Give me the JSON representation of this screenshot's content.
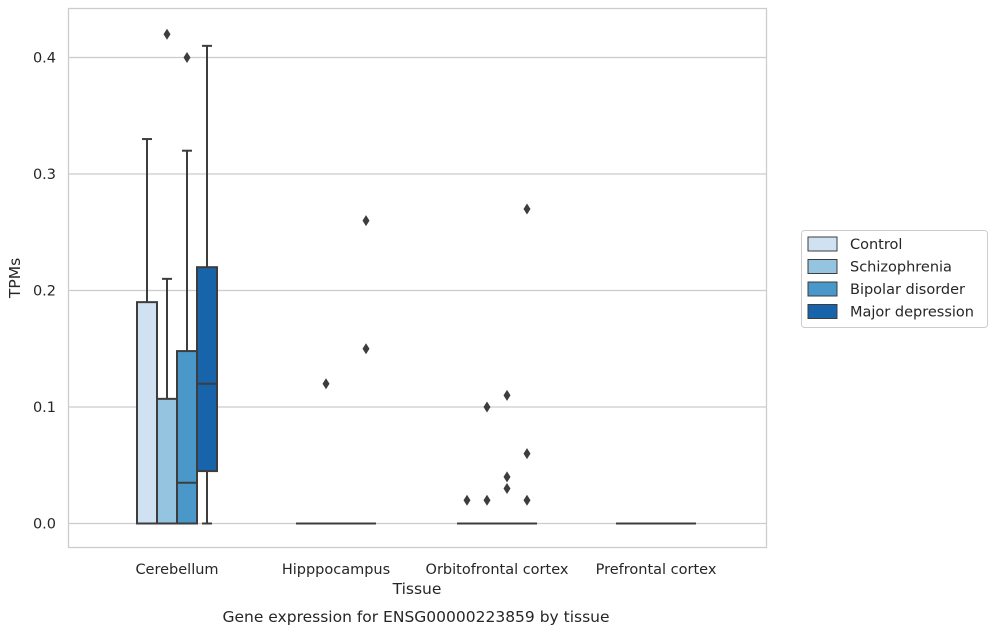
{
  "caption": "Gene expression for ENSG00000223859 by tissue",
  "chart_data": {
    "type": "box",
    "title": "",
    "xlabel": "Tissue",
    "ylabel": "TPMs",
    "ylim": [
      -0.02,
      0.442
    ],
    "yticks": [
      "0.0",
      "0.1",
      "0.2",
      "0.3",
      "0.4"
    ],
    "grid": "horizontal",
    "legend_position": "right",
    "categories": [
      "Cerebellum",
      "Hipppocampus",
      "Orbitofrontal cortex",
      "Prefrontal cortex"
    ],
    "series": [
      {
        "name": "Control",
        "color": "#d0e1f2",
        "boxes": [
          {
            "min": 0,
            "q1": 0,
            "median": 0,
            "q3": 0.19,
            "max": 0.33,
            "outliers": []
          },
          {
            "min": 0,
            "q1": 0,
            "median": 0,
            "q3": 0,
            "max": 0,
            "outliers": []
          },
          {
            "min": 0,
            "q1": 0,
            "median": 0,
            "q3": 0,
            "max": 0,
            "outliers": [
              0.02
            ]
          },
          {
            "min": 0,
            "q1": 0,
            "median": 0,
            "q3": 0,
            "max": 0,
            "outliers": []
          }
        ]
      },
      {
        "name": "Schizophrenia",
        "color": "#94c4df",
        "boxes": [
          {
            "min": 0,
            "q1": 0,
            "median": 0,
            "q3": 0.107,
            "max": 0.21,
            "outliers": [
              0.42
            ]
          },
          {
            "min": 0,
            "q1": 0,
            "median": 0,
            "q3": 0,
            "max": 0,
            "outliers": [
              0.12
            ]
          },
          {
            "min": 0,
            "q1": 0,
            "median": 0,
            "q3": 0,
            "max": 0,
            "outliers": [
              0.1,
              0.02
            ]
          },
          {
            "min": 0,
            "q1": 0,
            "median": 0,
            "q3": 0,
            "max": 0,
            "outliers": []
          }
        ]
      },
      {
        "name": "Bipolar disorder",
        "color": "#4a98c9",
        "boxes": [
          {
            "min": 0,
            "q1": 0,
            "median": 0.035,
            "q3": 0.148,
            "max": 0.32,
            "outliers": [
              0.4
            ]
          },
          {
            "min": 0,
            "q1": 0,
            "median": 0,
            "q3": 0,
            "max": 0,
            "outliers": []
          },
          {
            "min": 0,
            "q1": 0,
            "median": 0,
            "q3": 0,
            "max": 0,
            "outliers": [
              0.11,
              0.04,
              0.03
            ]
          },
          {
            "min": 0,
            "q1": 0,
            "median": 0,
            "q3": 0,
            "max": 0,
            "outliers": []
          }
        ]
      },
      {
        "name": "Major depression",
        "color": "#1764ab",
        "boxes": [
          {
            "min": 0,
            "q1": 0.045,
            "median": 0.12,
            "q3": 0.22,
            "max": 0.41,
            "outliers": []
          },
          {
            "min": 0,
            "q1": 0,
            "median": 0,
            "q3": 0,
            "max": 0,
            "outliers": [
              0.26,
              0.15
            ]
          },
          {
            "min": 0,
            "q1": 0,
            "median": 0,
            "q3": 0,
            "max": 0,
            "outliers": [
              0.27,
              0.06,
              0.02
            ]
          },
          {
            "min": 0,
            "q1": 0,
            "median": 0,
            "q3": 0,
            "max": 0,
            "outliers": []
          }
        ]
      }
    ]
  }
}
